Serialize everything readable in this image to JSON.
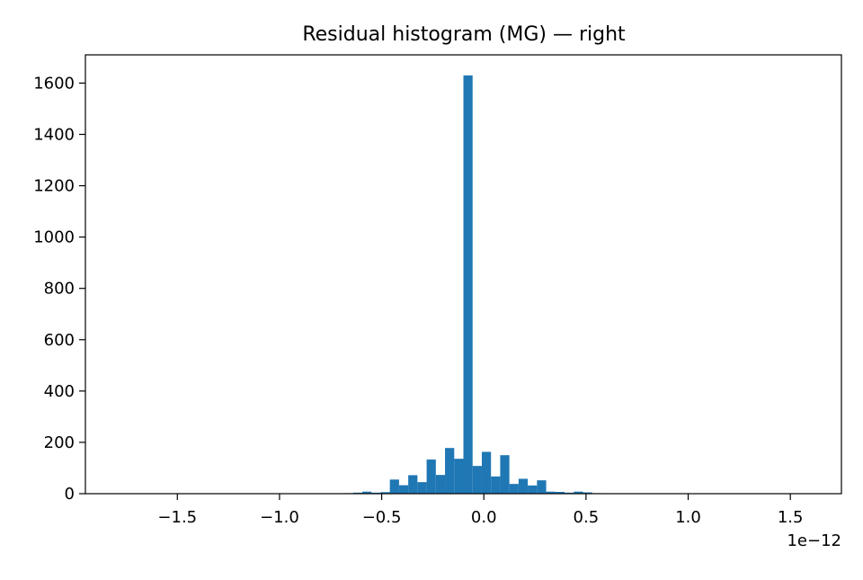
{
  "chart_data": {
    "type": "bar",
    "title": "Residual histogram (MG) — right",
    "xlabel": "",
    "ylabel": "",
    "x_offset_label": "1e−12",
    "xlim": [
      -1.95,
      1.75
    ],
    "ylim": [
      0,
      1710
    ],
    "x_ticks": [
      -1.5,
      -1.0,
      -0.5,
      0.0,
      0.5,
      1.0,
      1.5
    ],
    "x_tick_labels": [
      "−1.5",
      "−1.0",
      "−0.5",
      "0.0",
      "0.5",
      "1.0",
      "1.5"
    ],
    "y_ticks": [
      0,
      200,
      400,
      600,
      800,
      1000,
      1200,
      1400,
      1600
    ],
    "y_tick_labels": [
      "0",
      "200",
      "400",
      "600",
      "800",
      "1000",
      "1200",
      "1400",
      "1600"
    ],
    "grid": false,
    "bar_color": "#1f77b4",
    "bin_width": 0.045,
    "bins": [
      {
        "left": -0.685,
        "count": 2
      },
      {
        "left": -0.64,
        "count": 4
      },
      {
        "left": -0.595,
        "count": 8
      },
      {
        "left": -0.55,
        "count": 4
      },
      {
        "left": -0.505,
        "count": 6
      },
      {
        "left": -0.46,
        "count": 55
      },
      {
        "left": -0.415,
        "count": 33
      },
      {
        "left": -0.37,
        "count": 72
      },
      {
        "left": -0.325,
        "count": 45
      },
      {
        "left": -0.28,
        "count": 133
      },
      {
        "left": -0.235,
        "count": 73
      },
      {
        "left": -0.19,
        "count": 178
      },
      {
        "left": -0.145,
        "count": 136
      },
      {
        "left": -0.1,
        "count": 1630
      },
      {
        "left": -0.055,
        "count": 108
      },
      {
        "left": -0.01,
        "count": 163
      },
      {
        "left": 0.035,
        "count": 67
      },
      {
        "left": 0.08,
        "count": 150
      },
      {
        "left": 0.125,
        "count": 38
      },
      {
        "left": 0.17,
        "count": 58
      },
      {
        "left": 0.215,
        "count": 32
      },
      {
        "left": 0.26,
        "count": 52
      },
      {
        "left": 0.305,
        "count": 8
      },
      {
        "left": 0.35,
        "count": 7
      },
      {
        "left": 0.395,
        "count": 4
      },
      {
        "left": 0.44,
        "count": 8
      },
      {
        "left": 0.485,
        "count": 5
      },
      {
        "left": 0.53,
        "count": 2
      }
    ]
  }
}
